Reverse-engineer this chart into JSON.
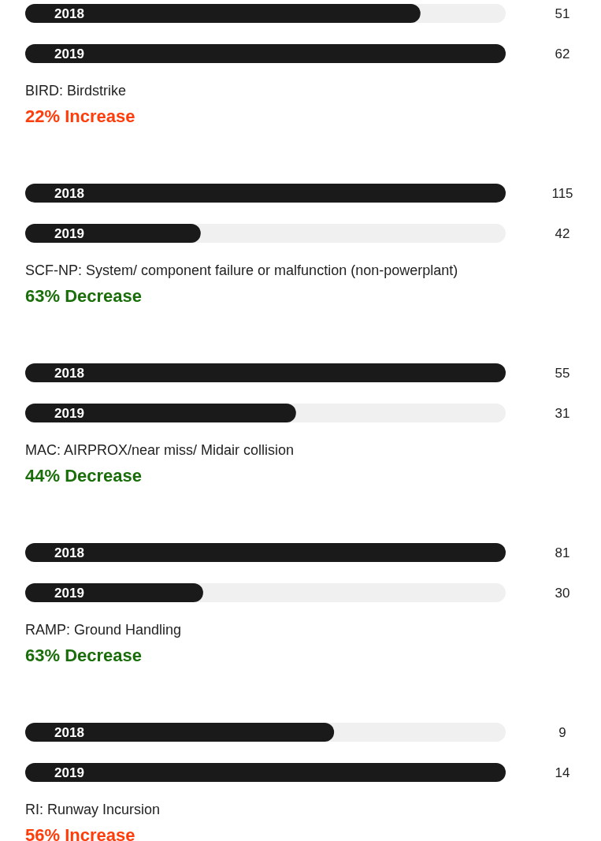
{
  "chart_data": [
    {
      "type": "bar",
      "orientation": "horizontal",
      "title": "BIRD: Birdstrike",
      "subtitle": "22% Increase",
      "categories": [
        "2018",
        "2019"
      ],
      "series": [
        {
          "color": "#1a1a1a",
          "values": [
            51,
            62
          ]
        }
      ],
      "data_labels": true
    },
    {
      "type": "bar",
      "orientation": "horizontal",
      "title": "SCF-NP: System/ component failure or malfunction (non-powerplant)",
      "subtitle": "63% Decrease",
      "categories": [
        "2018",
        "2019"
      ],
      "series": [
        {
          "color": "#1a1a1a",
          "values": [
            115,
            42
          ]
        }
      ],
      "data_labels": true
    },
    {
      "type": "bar",
      "orientation": "horizontal",
      "title": "MAC: AIRPROX/near miss/ Midair collision",
      "subtitle": "44% Decrease",
      "categories": [
        "2018",
        "2019"
      ],
      "series": [
        {
          "color": "#1a1a1a",
          "values": [
            55,
            31
          ]
        }
      ],
      "data_labels": true
    },
    {
      "type": "bar",
      "orientation": "horizontal",
      "title": "RAMP: Ground Handling",
      "subtitle": "63% Decrease",
      "categories": [
        "2018",
        "2019"
      ],
      "series": [
        {
          "color": "#1a1a1a",
          "values": [
            81,
            30
          ]
        }
      ],
      "data_labels": true
    },
    {
      "type": "bar",
      "orientation": "horizontal",
      "title": "RI: Runway Incursion",
      "subtitle": "56% Increase",
      "categories": [
        "2018",
        "2019"
      ],
      "series": [
        {
          "color": "#1a1a1a",
          "values": [
            9,
            14
          ]
        }
      ],
      "data_labels": true
    }
  ]
}
